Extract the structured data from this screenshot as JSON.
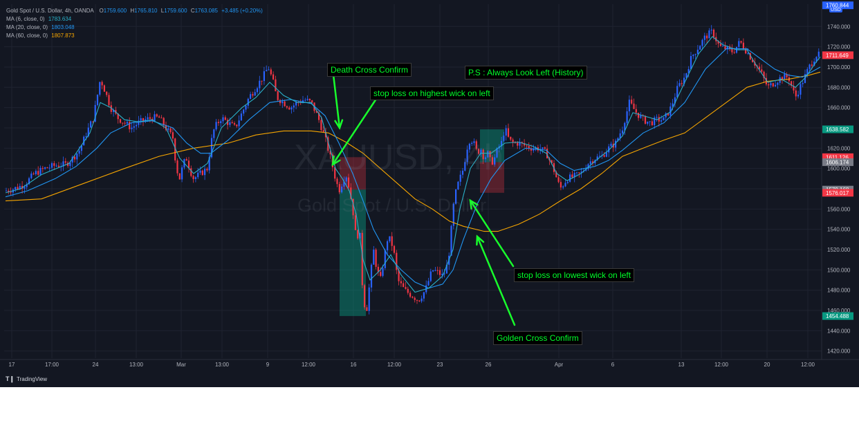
{
  "legend": {
    "symbol": "Gold Spot / U.S. Dollar, 4h, OANDA",
    "o_label": "O",
    "o_val": "1759.600",
    "h_label": "H",
    "h_val": "1765.810",
    "l_label": "L",
    "l_val": "1759.600",
    "c_label": "C",
    "c_val": "1763.085",
    "change": "+3.485 (+0.20%)",
    "ma": [
      {
        "label": "MA (6, close, 0)",
        "value": "1783.634",
        "color": "#2ab0c8"
      },
      {
        "label": "MA (20, close, 0)",
        "value": "1803.048",
        "color": "#2196f3"
      },
      {
        "label": "MA (60, close, 0)",
        "value": "1807.873",
        "color": "#f7a600"
      }
    ]
  },
  "watermark": {
    "ticker": "XAUUSD, 4h",
    "name": "Gold Spot / U.S. Dollar"
  },
  "annotations": {
    "death_cross": "Death Cross Confirm",
    "ps": "P.S : Always Look Left (History)",
    "stop_high": "stop loss on highest wick on left",
    "stop_low": "stop loss on lowest wick on left",
    "golden_cross": "Golden Cross Confirm"
  },
  "brand": "TradingView",
  "currency_button": "USD",
  "chart_data": {
    "type": "candlestick",
    "y_axis": {
      "ticks": [
        1420,
        1440,
        1460,
        1480,
        1500,
        1520,
        1540,
        1560,
        1580,
        1600,
        1620,
        1640,
        1660,
        1680,
        1700,
        1720,
        1740
      ],
      "tick_labels": [
        "1420.000",
        "1440.000",
        "1460.000",
        "1480.000",
        "1500.000",
        "1520.000",
        "1540.000",
        "1560.000",
        "1580.000",
        "1600.000",
        "1620.000",
        "1640.000",
        "1660.000",
        "1680.000",
        "1700.000",
        "1720.000",
        "1740.000"
      ],
      "range": [
        1413,
        1762
      ]
    },
    "x_axis": {
      "labels": [
        "17",
        "17:00",
        "24",
        "13:00",
        "Mar",
        "13:00",
        "9",
        "12:00",
        "16",
        "12:00",
        "23",
        "26",
        "Apr",
        "6",
        "13",
        "12:00",
        "20",
        "12:00"
      ],
      "label_x": [
        17,
        75,
        138,
        197,
        262,
        321,
        387,
        446,
        511,
        570,
        636,
        706,
        808,
        886,
        985,
        1043,
        1109,
        1168
      ]
    },
    "price_labels": [
      {
        "text": "1760.844",
        "value": 1760.844,
        "color": "#2962ff"
      },
      {
        "text": "1711.649",
        "value": 1711.649,
        "color": "#f23645"
      },
      {
        "text": "1638.582",
        "value": 1638.582,
        "color": "#089981"
      },
      {
        "text": "1611.126",
        "value": 1611.126,
        "color": "#f23645"
      },
      {
        "text": "1606.174",
        "value": 1606.174,
        "color": "#787b86"
      },
      {
        "text": "1579.168",
        "value": 1579.168,
        "color": "#787b86"
      },
      {
        "text": "1576.017",
        "value": 1576.017,
        "color": "#f23645"
      },
      {
        "text": "1454.488",
        "value": 1454.488,
        "color": "#089981"
      }
    ],
    "price_path": [
      [
        8,
        1578
      ],
      [
        20,
        1580
      ],
      [
        35,
        1584
      ],
      [
        50,
        1595
      ],
      [
        65,
        1600
      ],
      [
        80,
        1603
      ],
      [
        95,
        1604
      ],
      [
        105,
        1610
      ],
      [
        115,
        1618
      ],
      [
        125,
        1635
      ],
      [
        135,
        1650
      ],
      [
        145,
        1688
      ],
      [
        150,
        1680
      ],
      [
        155,
        1670
      ],
      [
        160,
        1660
      ],
      [
        170,
        1650
      ],
      [
        180,
        1645
      ],
      [
        190,
        1640
      ],
      [
        200,
        1645
      ],
      [
        210,
        1648
      ],
      [
        220,
        1650
      ],
      [
        230,
        1650
      ],
      [
        240,
        1640
      ],
      [
        250,
        1630
      ],
      [
        255,
        1600
      ],
      [
        260,
        1590
      ],
      [
        265,
        1605
      ],
      [
        270,
        1610
      ],
      [
        275,
        1598
      ],
      [
        280,
        1590
      ],
      [
        290,
        1595
      ],
      [
        300,
        1600
      ],
      [
        305,
        1625
      ],
      [
        310,
        1640
      ],
      [
        320,
        1650
      ],
      [
        330,
        1645
      ],
      [
        340,
        1640
      ],
      [
        350,
        1655
      ],
      [
        360,
        1670
      ],
      [
        370,
        1680
      ],
      [
        380,
        1690
      ],
      [
        388,
        1700
      ],
      [
        395,
        1685
      ],
      [
        400,
        1670
      ],
      [
        410,
        1665
      ],
      [
        420,
        1660
      ],
      [
        430,
        1665
      ],
      [
        440,
        1668
      ],
      [
        450,
        1665
      ],
      [
        460,
        1650
      ],
      [
        470,
        1630
      ],
      [
        478,
        1610
      ],
      [
        485,
        1590
      ],
      [
        490,
        1578
      ],
      [
        500,
        1595
      ],
      [
        505,
        1580
      ],
      [
        510,
        1560
      ],
      [
        515,
        1530
      ],
      [
        520,
        1540
      ],
      [
        525,
        1470
      ],
      [
        530,
        1460
      ],
      [
        535,
        1490
      ],
      [
        540,
        1520
      ],
      [
        545,
        1500
      ],
      [
        550,
        1490
      ],
      [
        555,
        1510
      ],
      [
        560,
        1530
      ],
      [
        565,
        1530
      ],
      [
        570,
        1515
      ],
      [
        575,
        1490
      ],
      [
        585,
        1480
      ],
      [
        595,
        1475
      ],
      [
        605,
        1470
      ],
      [
        615,
        1480
      ],
      [
        620,
        1490
      ],
      [
        625,
        1500
      ],
      [
        632,
        1498
      ],
      [
        640,
        1494
      ],
      [
        645,
        1500
      ],
      [
        650,
        1520
      ],
      [
        655,
        1560
      ],
      [
        660,
        1580
      ],
      [
        665,
        1590
      ],
      [
        670,
        1600
      ],
      [
        675,
        1620
      ],
      [
        680,
        1630
      ],
      [
        685,
        1625
      ],
      [
        690,
        1615
      ],
      [
        695,
        1620
      ],
      [
        700,
        1610
      ],
      [
        705,
        1615
      ],
      [
        710,
        1605
      ],
      [
        715,
        1610
      ],
      [
        720,
        1620
      ],
      [
        725,
        1625
      ],
      [
        730,
        1640
      ],
      [
        735,
        1630
      ],
      [
        740,
        1625
      ],
      [
        750,
        1625
      ],
      [
        760,
        1622
      ],
      [
        770,
        1620
      ],
      [
        780,
        1620
      ],
      [
        790,
        1615
      ],
      [
        800,
        1600
      ],
      [
        810,
        1580
      ],
      [
        820,
        1590
      ],
      [
        830,
        1592
      ],
      [
        840,
        1595
      ],
      [
        850,
        1605
      ],
      [
        860,
        1610
      ],
      [
        870,
        1612
      ],
      [
        880,
        1620
      ],
      [
        890,
        1625
      ],
      [
        900,
        1640
      ],
      [
        910,
        1665
      ],
      [
        920,
        1655
      ],
      [
        930,
        1648
      ],
      [
        940,
        1645
      ],
      [
        950,
        1648
      ],
      [
        960,
        1648
      ],
      [
        970,
        1660
      ],
      [
        980,
        1680
      ],
      [
        990,
        1690
      ],
      [
        1000,
        1710
      ],
      [
        1010,
        1720
      ],
      [
        1020,
        1730
      ],
      [
        1030,
        1735
      ],
      [
        1040,
        1720
      ],
      [
        1050,
        1718
      ],
      [
        1060,
        1715
      ],
      [
        1070,
        1725
      ],
      [
        1080,
        1715
      ],
      [
        1090,
        1705
      ],
      [
        1100,
        1695
      ],
      [
        1110,
        1680
      ],
      [
        1120,
        1685
      ],
      [
        1130,
        1690
      ],
      [
        1140,
        1690
      ],
      [
        1150,
        1670
      ],
      [
        1160,
        1685
      ],
      [
        1170,
        1700
      ],
      [
        1180,
        1712
      ],
      [
        1186,
        1711.649
      ]
    ],
    "ma_fast": [
      [
        8,
        1576
      ],
      [
        30,
        1580
      ],
      [
        60,
        1594
      ],
      [
        100,
        1605
      ],
      [
        130,
        1635
      ],
      [
        145,
        1665
      ],
      [
        160,
        1660
      ],
      [
        180,
        1648
      ],
      [
        200,
        1646
      ],
      [
        220,
        1648
      ],
      [
        240,
        1640
      ],
      [
        260,
        1610
      ],
      [
        280,
        1595
      ],
      [
        300,
        1605
      ],
      [
        320,
        1640
      ],
      [
        350,
        1660
      ],
      [
        370,
        1670
      ],
      [
        390,
        1685
      ],
      [
        410,
        1672
      ],
      [
        430,
        1665
      ],
      [
        450,
        1665
      ],
      [
        465,
        1650
      ],
      [
        475,
        1625
      ],
      [
        485,
        1600
      ],
      [
        495,
        1590
      ],
      [
        505,
        1578
      ],
      [
        515,
        1555
      ],
      [
        525,
        1510
      ],
      [
        535,
        1490
      ],
      [
        550,
        1500
      ],
      [
        565,
        1515
      ],
      [
        580,
        1495
      ],
      [
        600,
        1478
      ],
      [
        620,
        1482
      ],
      [
        640,
        1494
      ],
      [
        655,
        1520
      ],
      [
        665,
        1560
      ],
      [
        680,
        1600
      ],
      [
        695,
        1615
      ],
      [
        710,
        1615
      ],
      [
        730,
        1625
      ],
      [
        750,
        1626
      ],
      [
        770,
        1622
      ],
      [
        790,
        1615
      ],
      [
        805,
        1595
      ],
      [
        820,
        1588
      ],
      [
        840,
        1595
      ],
      [
        860,
        1607
      ],
      [
        880,
        1618
      ],
      [
        900,
        1632
      ],
      [
        915,
        1655
      ],
      [
        930,
        1652
      ],
      [
        950,
        1648
      ],
      [
        970,
        1656
      ],
      [
        990,
        1685
      ],
      [
        1010,
        1713
      ],
      [
        1030,
        1730
      ],
      [
        1045,
        1722
      ],
      [
        1065,
        1717
      ],
      [
        1080,
        1717
      ],
      [
        1095,
        1700
      ],
      [
        1110,
        1685
      ],
      [
        1130,
        1688
      ],
      [
        1150,
        1680
      ],
      [
        1165,
        1690
      ],
      [
        1180,
        1705
      ],
      [
        1186,
        1710
      ]
    ],
    "ma_mid": [
      [
        8,
        1572
      ],
      [
        40,
        1578
      ],
      [
        80,
        1590
      ],
      [
        110,
        1602
      ],
      [
        140,
        1620
      ],
      [
        160,
        1635
      ],
      [
        190,
        1645
      ],
      [
        220,
        1647
      ],
      [
        250,
        1640
      ],
      [
        270,
        1625
      ],
      [
        290,
        1615
      ],
      [
        305,
        1615
      ],
      [
        330,
        1628
      ],
      [
        360,
        1648
      ],
      [
        390,
        1665
      ],
      [
        420,
        1668
      ],
      [
        450,
        1664
      ],
      [
        470,
        1652
      ],
      [
        490,
        1625
      ],
      [
        510,
        1595
      ],
      [
        525,
        1568
      ],
      [
        540,
        1540
      ],
      [
        560,
        1515
      ],
      [
        580,
        1500
      ],
      [
        600,
        1488
      ],
      [
        620,
        1482
      ],
      [
        640,
        1486
      ],
      [
        655,
        1500
      ],
      [
        670,
        1530
      ],
      [
        690,
        1565
      ],
      [
        710,
        1590
      ],
      [
        730,
        1608
      ],
      [
        760,
        1620
      ],
      [
        790,
        1618
      ],
      [
        810,
        1605
      ],
      [
        830,
        1598
      ],
      [
        860,
        1602
      ],
      [
        880,
        1608
      ],
      [
        900,
        1618
      ],
      [
        930,
        1635
      ],
      [
        960,
        1645
      ],
      [
        990,
        1665
      ],
      [
        1020,
        1698
      ],
      [
        1050,
        1718
      ],
      [
        1080,
        1718
      ],
      [
        1100,
        1708
      ],
      [
        1120,
        1698
      ],
      [
        1140,
        1692
      ],
      [
        1160,
        1690
      ],
      [
        1186,
        1700
      ]
    ],
    "ma_slow": [
      [
        8,
        1568
      ],
      [
        60,
        1570
      ],
      [
        120,
        1585
      ],
      [
        180,
        1600
      ],
      [
        230,
        1612
      ],
      [
        280,
        1620
      ],
      [
        330,
        1625
      ],
      [
        370,
        1633
      ],
      [
        410,
        1637
      ],
      [
        450,
        1637
      ],
      [
        475,
        1635
      ],
      [
        500,
        1626
      ],
      [
        525,
        1615
      ],
      [
        550,
        1600
      ],
      [
        575,
        1585
      ],
      [
        600,
        1570
      ],
      [
        625,
        1560
      ],
      [
        650,
        1548
      ],
      [
        670,
        1543
      ],
      [
        700,
        1538
      ],
      [
        720,
        1538
      ],
      [
        750,
        1545
      ],
      [
        780,
        1555
      ],
      [
        810,
        1568
      ],
      [
        840,
        1580
      ],
      [
        870,
        1595
      ],
      [
        900,
        1612
      ],
      [
        930,
        1620
      ],
      [
        960,
        1628
      ],
      [
        990,
        1635
      ],
      [
        1020,
        1650
      ],
      [
        1050,
        1665
      ],
      [
        1080,
        1680
      ],
      [
        1110,
        1686
      ],
      [
        1140,
        1688
      ],
      [
        1170,
        1692
      ],
      [
        1186,
        1695
      ]
    ],
    "zones": [
      {
        "type": "stop",
        "x1": 491,
        "x2": 529,
        "top": 1611.126,
        "bottom": 1579.168
      },
      {
        "type": "target",
        "x1": 491,
        "x2": 529,
        "top": 1579.168,
        "bottom": 1454.488
      },
      {
        "type": "target",
        "x1": 694,
        "x2": 729,
        "top": 1638.582,
        "bottom": 1606.174
      },
      {
        "type": "stop",
        "x1": 694,
        "x2": 729,
        "top": 1606.174,
        "bottom": 1576.017
      }
    ]
  }
}
